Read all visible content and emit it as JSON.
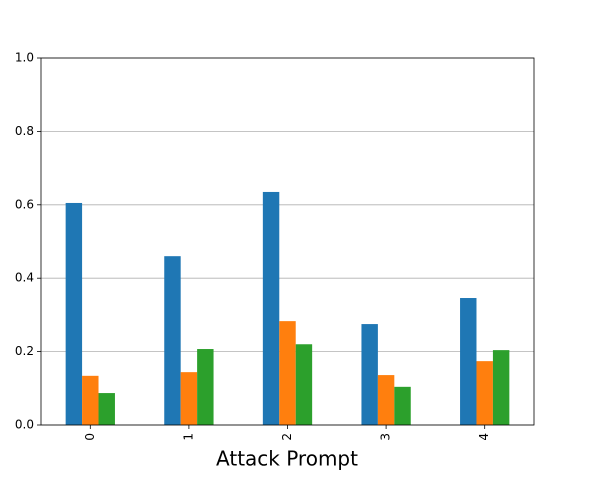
{
  "chart_data": {
    "type": "bar",
    "x_label": "Attack Prompt",
    "categories": [
      "0",
      "1",
      "2",
      "3",
      "4"
    ],
    "series": [
      {
        "color": "#1f77b4",
        "values": [
          0.605,
          0.46,
          0.635,
          0.275,
          0.346
        ]
      },
      {
        "color": "#ff7f0e",
        "values": [
          0.134,
          0.144,
          0.283,
          0.136,
          0.174
        ]
      },
      {
        "color": "#2ca02c",
        "values": [
          0.087,
          0.207,
          0.22,
          0.104,
          0.204
        ]
      }
    ],
    "ylim": [
      0,
      1
    ],
    "yticks": [
      {
        "value": 0,
        "label": "0.0"
      },
      {
        "value": 0.2,
        "label": "0.2"
      },
      {
        "value": 0.4,
        "label": "0.4"
      },
      {
        "value": 0.6,
        "label": "0.6"
      },
      {
        "value": 0.8,
        "label": "0.8"
      },
      {
        "value": 1,
        "label": "1.0"
      }
    ],
    "grid": true
  }
}
